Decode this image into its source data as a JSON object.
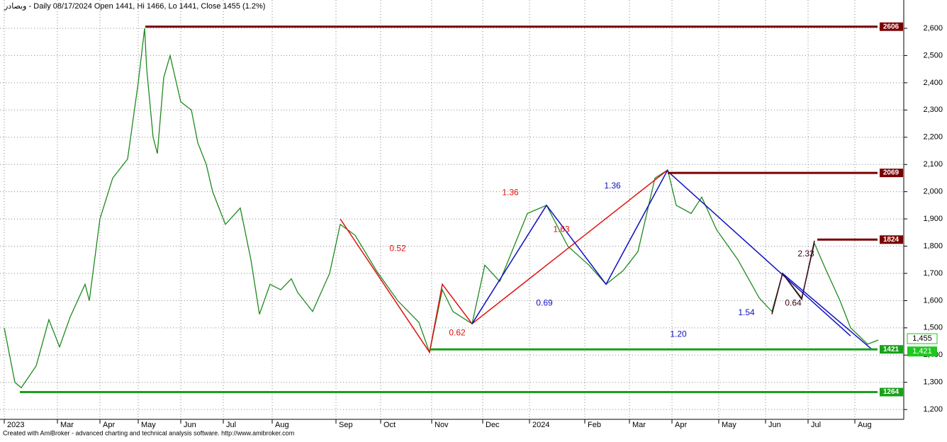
{
  "chart_data": {
    "type": "line",
    "title": "وبصادر - Daily 08/17/2024 Open 1441, Hi 1466, Lo 1441, Close 1455 (1.2%)",
    "footer": "Created with AmiBroker - advanced charting and technical analysis software. http://www.amibroker.com",
    "xlim": [
      0,
      425
    ],
    "ylim": [
      1164,
      2704
    ],
    "xticks": [
      {
        "value": 2,
        "label": "2023"
      },
      {
        "value": 27,
        "label": "Mar"
      },
      {
        "value": 47,
        "label": "Apr"
      },
      {
        "value": 65,
        "label": "May"
      },
      {
        "value": 85,
        "label": "Jun"
      },
      {
        "value": 105,
        "label": "Jul"
      },
      {
        "value": 128,
        "label": "Aug"
      },
      {
        "value": 158,
        "label": "Sep"
      },
      {
        "value": 179,
        "label": "Oct"
      },
      {
        "value": 203,
        "label": "Nov"
      },
      {
        "value": 227,
        "label": "Dec"
      },
      {
        "value": 249,
        "label": "2024"
      },
      {
        "value": 275,
        "label": "Feb"
      },
      {
        "value": 296,
        "label": "Mar"
      },
      {
        "value": 316,
        "label": "Apr"
      },
      {
        "value": 338,
        "label": "May"
      },
      {
        "value": 360,
        "label": "Jun"
      },
      {
        "value": 380,
        "label": "Jul"
      },
      {
        "value": 402,
        "label": "Aug"
      }
    ],
    "yticks": [
      {
        "value": 1200,
        "label": "1,200"
      },
      {
        "value": 1300,
        "label": "1,300"
      },
      {
        "value": 1400,
        "label": "1,400"
      },
      {
        "value": 1500,
        "label": "1,500"
      },
      {
        "value": 1600,
        "label": "1,600"
      },
      {
        "value": 1700,
        "label": "1,700"
      },
      {
        "value": 1800,
        "label": "1,800"
      },
      {
        "value": 1900,
        "label": "1,900"
      },
      {
        "value": 2000,
        "label": "2,000"
      },
      {
        "value": 2100,
        "label": "2,100"
      },
      {
        "value": 2200,
        "label": "2,200"
      },
      {
        "value": 2300,
        "label": "2,300"
      },
      {
        "value": 2400,
        "label": "2,400"
      },
      {
        "value": 2500,
        "label": "2,500"
      },
      {
        "value": 2600,
        "label": "2,600"
      }
    ],
    "grid": true,
    "series": [
      {
        "color": "#1f8a1f",
        "x": [
          2,
          7,
          10,
          17,
          23,
          28,
          33,
          40,
          42,
          47,
          53,
          60,
          65,
          68,
          69,
          72,
          74,
          77,
          80,
          85,
          90,
          93,
          97,
          100,
          106,
          113,
          118,
          122,
          127,
          132,
          137,
          140,
          147,
          155,
          160,
          167,
          177,
          187,
          197,
          202,
          208,
          213,
          222,
          228,
          235,
          248,
          257,
          267,
          277,
          285,
          293,
          300,
          308,
          314,
          318,
          325,
          330,
          337,
          347,
          357,
          363,
          368,
          377,
          383,
          388,
          395,
          400,
          408,
          413
        ],
        "values": [
          1500,
          1300,
          1280,
          1360,
          1530,
          1430,
          1540,
          1660,
          1600,
          1900,
          2050,
          2120,
          2400,
          2600,
          2450,
          2200,
          2140,
          2420,
          2500,
          2330,
          2300,
          2180,
          2100,
          2000,
          1880,
          1940,
          1750,
          1550,
          1660,
          1640,
          1680,
          1630,
          1560,
          1700,
          1880,
          1840,
          1710,
          1600,
          1520,
          1410,
          1640,
          1560,
          1515,
          1730,
          1670,
          1920,
          1950,
          1800,
          1730,
          1660,
          1710,
          1780,
          2050,
          2080,
          1950,
          1920,
          1980,
          1860,
          1750,
          1610,
          1560,
          1700,
          1610,
          1810,
          1720,
          1600,
          1500,
          1440,
          1455
        ]
      }
    ],
    "levels": [
      {
        "value": 2606,
        "color": "#7a0000"
      },
      {
        "value": 2069,
        "color": "#7a0000"
      },
      {
        "value": 1824,
        "color": "#7a0000"
      },
      {
        "value": 1421,
        "color": "#1aa01a"
      },
      {
        "value": 1264,
        "color": "#1aa01a"
      }
    ],
    "patterns": [
      {
        "color": "#e01010",
        "x": [
          160,
          202,
          208,
          222,
          314
        ],
        "values": [
          1900,
          1410,
          1660,
          1515,
          2080
        ]
      },
      {
        "color": "#1010c0",
        "x": [
          222,
          257,
          285,
          314
        ],
        "values": [
          1515,
          1950,
          1660,
          2080
        ]
      },
      {
        "color": "#1010c0",
        "x": [
          314,
          400
        ],
        "values": [
          2075,
          1470
        ]
      },
      {
        "color": "#400020",
        "x": [
          363,
          368,
          377,
          383
        ],
        "values": [
          1550,
          1700,
          1605,
          1820
        ]
      },
      {
        "color": "#1010c0",
        "x": [
          368,
          410
        ],
        "values": [
          1700,
          1421
        ]
      }
    ],
    "annotations": [
      {
        "text": "0.52",
        "x": 187,
        "y": 1790,
        "color": "#e01010"
      },
      {
        "text": "0.62",
        "x": 215,
        "y": 1480,
        "color": "#e01010"
      },
      {
        "text": "1.36",
        "x": 240,
        "y": 1995,
        "color": "#e01010"
      },
      {
        "text": "1.63",
        "x": 264,
        "y": 1860,
        "color": "#e01010"
      },
      {
        "text": "1.36",
        "x": 288,
        "y": 2020,
        "color": "#1010c0"
      },
      {
        "text": "0.69",
        "x": 256,
        "y": 1590,
        "color": "#1010c0"
      },
      {
        "text": "1.20",
        "x": 319,
        "y": 1475,
        "color": "#1010c0"
      },
      {
        "text": "1.54",
        "x": 351,
        "y": 1555,
        "color": "#1010c0"
      },
      {
        "text": "0.64",
        "x": 373,
        "y": 1590,
        "color": "#400020"
      },
      {
        "text": "2.33",
        "x": 379,
        "y": 1770,
        "color": "#400020"
      }
    ],
    "last_labels": [
      {
        "value": 1455,
        "label": "1,455"
      },
      {
        "value": 1421,
        "label": "1,421"
      }
    ]
  }
}
